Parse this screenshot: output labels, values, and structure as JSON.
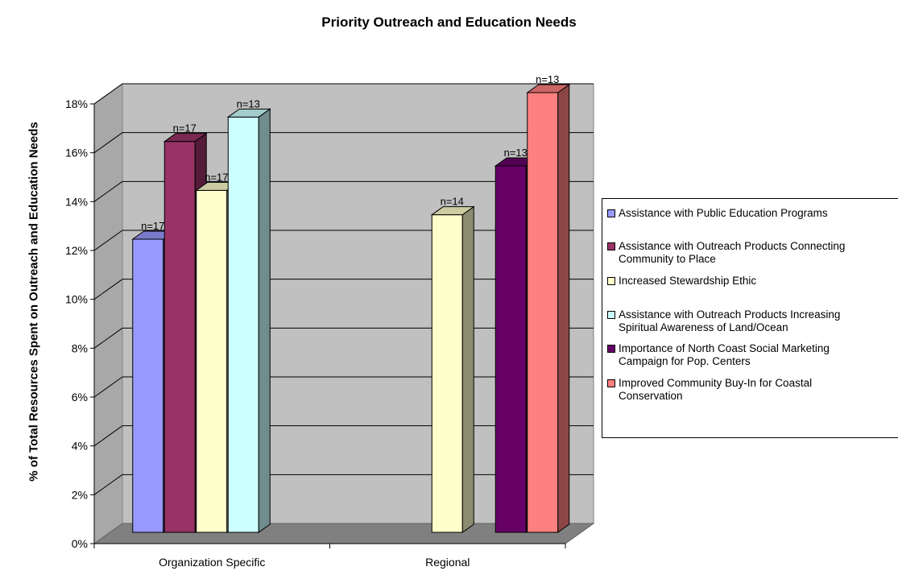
{
  "chart_data": {
    "type": "bar",
    "title": "Priority Outreach and Education Needs",
    "ylabel": "% of Total Resources Spent on Outreach and Education Needs",
    "xlabel": "",
    "categories": [
      "Organization Specific",
      "Regional"
    ],
    "ylim": [
      0,
      18
    ],
    "y_tick_labels": [
      "0%",
      "2%",
      "4%",
      "6%",
      "8%",
      "10%",
      "12%",
      "14%",
      "16%",
      "18%"
    ],
    "grid": true,
    "legend_position": "right",
    "series": [
      {
        "name": "Assistance with Public Education Programs",
        "color": "#9999ff",
        "values": [
          12,
          null
        ],
        "labels": [
          "n=17",
          ""
        ]
      },
      {
        "name": "Assistance with Outreach Products Connecting Community to Place",
        "color": "#993366",
        "values": [
          16,
          null
        ],
        "labels": [
          "n=17",
          ""
        ]
      },
      {
        "name": "Increased Stewardship Ethic",
        "color": "#ffffcc",
        "values": [
          14,
          13
        ],
        "labels": [
          "n=17",
          "n=14"
        ]
      },
      {
        "name": "Assistance with Outreach Products Increasing Spiritual Awareness of Land/Ocean",
        "color": "#ccffff",
        "values": [
          17,
          null
        ],
        "labels": [
          "n=13",
          ""
        ]
      },
      {
        "name": "Importance of North Coast Social Marketing Campaign for Pop. Centers",
        "color": "#660066",
        "values": [
          null,
          15
        ],
        "labels": [
          "",
          "n=13"
        ]
      },
      {
        "name": "Improved Community Buy-In for Coastal Conservation",
        "color": "#ff8080",
        "values": [
          null,
          18
        ],
        "labels": [
          "",
          "n=13"
        ]
      }
    ]
  },
  "legend": {
    "items": [
      {
        "label": "Assistance with Public Education Programs"
      },
      {
        "label": "Assistance with Outreach Products Connecting\nCommunity to Place"
      },
      {
        "label": "Increased Stewardship Ethic"
      },
      {
        "label": "Assistance with Outreach Products Increasing\nSpiritual Awareness of Land/Ocean"
      },
      {
        "label": "Importance of North Coast Social Marketing\nCampaign for Pop. Centers"
      },
      {
        "label": "Improved Community Buy-In for Coastal\nConservation"
      }
    ]
  }
}
